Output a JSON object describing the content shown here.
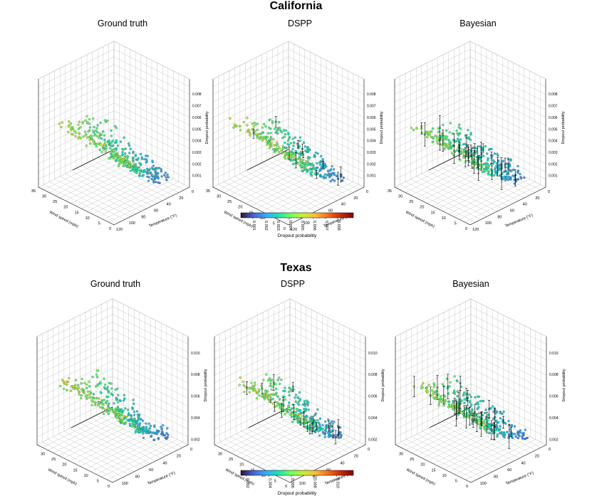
{
  "figure": {
    "colors": {
      "grid": "#c8c8c8",
      "axis": "#333333",
      "floor_line": "#111111",
      "point_edge": "#333333",
      "error_bar": "#000000",
      "colormap": [
        "#30123b",
        "#4662d7",
        "#36aaf9",
        "#1ae4b6",
        "#72fe5e",
        "#c8ef34",
        "#faba39",
        "#f66b19",
        "#ca2a04",
        "#7a0403"
      ]
    }
  },
  "chart_data": [
    {
      "section": "California",
      "colorbar": {
        "label": "Dropout probability",
        "min": 0.0,
        "max": 0.0093,
        "ticks": [
          0.001,
          0.002,
          0.003,
          0.004,
          0.005,
          0.006,
          0.007,
          0.008
        ],
        "tick_labels": [
          "0.001",
          "0.002",
          "0.003",
          "0.004",
          "0.005",
          "0.006",
          "0.007",
          "0.008"
        ]
      },
      "panels": [
        {
          "title": "Ground truth",
          "type": "scatter3d",
          "xlabel": "Temperature (°F)",
          "ylabel": "Wind speed (mph)",
          "zlabel": "Dropout probability",
          "xlim": [
            0,
            120
          ],
          "ylim": [
            0,
            35
          ],
          "zlim": [
            0,
            0.0093
          ],
          "xticks": [
            0,
            20,
            40,
            60,
            80,
            100,
            120
          ],
          "yticks": [
            0,
            5,
            10,
            15,
            20,
            25,
            30,
            35
          ],
          "zticks": [
            0.001,
            0.002,
            0.003,
            0.004,
            0.005,
            0.006,
            0.007,
            0.008
          ],
          "error_bars": false
        },
        {
          "title": "DSPP",
          "type": "scatter3d",
          "xlabel": "Temperature (°F)",
          "ylabel": "Wind speed (mph)",
          "zlabel": "Dropout probability",
          "xlim": [
            0,
            120
          ],
          "ylim": [
            0,
            35
          ],
          "zlim": [
            0,
            0.0093
          ],
          "xticks": [
            0,
            20,
            40,
            60,
            80,
            100,
            120
          ],
          "yticks": [
            0,
            5,
            10,
            15,
            20,
            25,
            30,
            35
          ],
          "zticks": [
            0.001,
            0.002,
            0.003,
            0.004,
            0.005,
            0.006,
            0.007,
            0.008
          ],
          "error_bars": true
        },
        {
          "title": "Bayesian",
          "type": "scatter3d",
          "xlabel": "Temperature (°F)",
          "ylabel": "Wind speed (mph)",
          "zlabel": "Dropout probability",
          "xlim": [
            0,
            120
          ],
          "ylim": [
            0,
            35
          ],
          "zlim": [
            0,
            0.0093
          ],
          "xticks": [
            0,
            20,
            40,
            60,
            80,
            100,
            120
          ],
          "yticks": [
            0,
            5,
            10,
            15,
            20,
            25,
            30,
            35
          ],
          "zticks": [
            0.001,
            0.002,
            0.003,
            0.004,
            0.005,
            0.006,
            0.007,
            0.008
          ],
          "error_bars": true
        }
      ]
    },
    {
      "section": "Texas",
      "colorbar": {
        "label": "Dropout probability",
        "min": 0.0015,
        "max": 0.0115,
        "ticks": [
          0.002,
          0.004,
          0.006,
          0.008,
          0.01
        ],
        "tick_labels": [
          "0.002",
          "0.004",
          "0.006",
          "0.008",
          "0.010"
        ]
      },
      "panels": [
        {
          "title": "Ground truth",
          "type": "scatter3d",
          "xlabel": "Temperature (°F)",
          "ylabel": "Wind speed (mph)",
          "zlabel": "Dropout probability",
          "xlim": [
            0,
            110
          ],
          "ylim": [
            0,
            35
          ],
          "zlim": [
            0.0015,
            0.0115
          ],
          "xticks": [
            0,
            20,
            40,
            60,
            80,
            100
          ],
          "yticks": [
            0,
            5,
            10,
            15,
            20,
            25,
            30
          ],
          "zticks": [
            0.002,
            0.004,
            0.006,
            0.008,
            0.01
          ],
          "error_bars": false
        },
        {
          "title": "DSPP",
          "type": "scatter3d",
          "xlabel": "Temperature (°F)",
          "ylabel": "Wind speed (mph)",
          "zlabel": "Dropout probability",
          "xlim": [
            0,
            110
          ],
          "ylim": [
            0,
            35
          ],
          "zlim": [
            0.0015,
            0.0115
          ],
          "xticks": [
            0,
            20,
            40,
            60,
            80,
            100
          ],
          "yticks": [
            0,
            5,
            10,
            15,
            20,
            25,
            30
          ],
          "zticks": [
            0.002,
            0.004,
            0.006,
            0.008,
            0.01
          ],
          "error_bars": true
        },
        {
          "title": "Bayesian",
          "type": "scatter3d",
          "xlabel": "Temperature (°F)",
          "ylabel": "Wind speed (mph)",
          "zlabel": "Dropout probability",
          "xlim": [
            0,
            110
          ],
          "ylim": [
            0,
            35
          ],
          "zlim": [
            0.0015,
            0.0115
          ],
          "xticks": [
            0,
            20,
            40,
            60,
            80,
            100
          ],
          "yticks": [
            0,
            5,
            10,
            15,
            20,
            25,
            30
          ],
          "zticks": [
            0.002,
            0.004,
            0.006,
            0.008,
            0.01
          ],
          "error_bars": true
        }
      ]
    }
  ]
}
